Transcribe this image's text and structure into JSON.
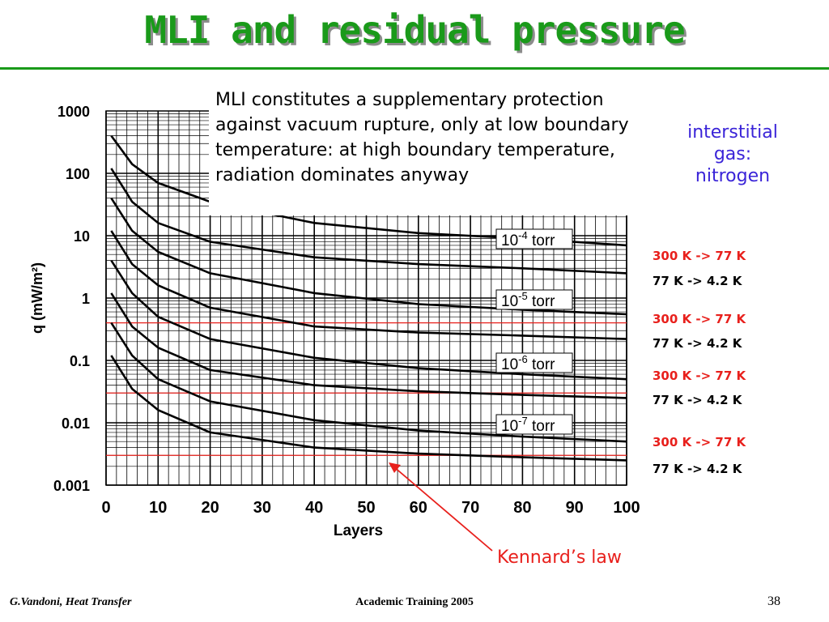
{
  "slide": {
    "title": "MLI and residual pressure",
    "note": "MLI constitutes a supplementary protection against vacuum rupture, only at low boundary temperature: at high boundary temperature, radiation dominates anyway",
    "gas_label_lines": [
      "interstitial",
      "gas:",
      "nitrogen"
    ],
    "conditions": [
      {
        "text": "300 K -> 77 K",
        "color": "#e8201c"
      },
      {
        "text": "77 K -> 4.2 K",
        "color": "#000000"
      },
      {
        "text": "300 K -> 77 K",
        "color": "#e8201c"
      },
      {
        "text": "77 K -> 4.2 K",
        "color": "#000000"
      },
      {
        "text": "300 K -> 77 K",
        "color": "#e8201c"
      },
      {
        "text": "77 K -> 4.2 K",
        "color": "#000000"
      },
      {
        "text": "300 K -> 77 K",
        "color": "#e8201c"
      },
      {
        "text": "77 K -> 4.2 K",
        "color": "#000000"
      }
    ],
    "kennard_label": "Kennard’s law",
    "footer_left": "G.Vandoni, Heat Transfer",
    "footer_center": "Academic Training 2005",
    "page_number": "38",
    "colors": {
      "title": "#1a9a1a",
      "accent_red": "#e8201c",
      "gas_label": "#3a24d8"
    }
  },
  "chart_data": {
    "type": "line",
    "xlabel": "Layers",
    "ylabel": "q (mW/m²)",
    "xlim": [
      0,
      100
    ],
    "ylim": [
      0.001,
      1000
    ],
    "yscale": "log",
    "grid": true,
    "x_ticks": [
      0,
      10,
      20,
      30,
      40,
      50,
      60,
      70,
      80,
      90,
      100
    ],
    "y_tick_labels": [
      "1000",
      "100",
      "10",
      "1",
      "0.1",
      "0.01",
      "0.001"
    ],
    "y_tick_values": [
      1000,
      100,
      10,
      1,
      0.1,
      0.01,
      0.001
    ],
    "pressure_labels": [
      {
        "base": "10",
        "exp": "-4",
        "unit": "torr"
      },
      {
        "base": "10",
        "exp": "-5",
        "unit": "torr"
      },
      {
        "base": "10",
        "exp": "-6",
        "unit": "torr"
      },
      {
        "base": "10",
        "exp": "-7",
        "unit": "torr"
      }
    ],
    "series": [
      {
        "x": [
          1,
          5,
          10,
          20,
          40,
          60,
          80,
          100
        ],
        "y": [
          400,
          140,
          70,
          35,
          16,
          11,
          9,
          7
        ]
      },
      {
        "x": [
          1,
          5,
          10,
          20,
          40,
          60,
          80,
          100
        ],
        "y": [
          120,
          35,
          16,
          8,
          4.5,
          3.5,
          3,
          2.5
        ]
      },
      {
        "x": [
          1,
          5,
          10,
          20,
          40,
          60,
          80,
          100
        ],
        "y": [
          40,
          12,
          5.5,
          2.5,
          1.2,
          0.8,
          0.65,
          0.55
        ]
      },
      {
        "x": [
          1,
          5,
          10,
          20,
          40,
          60,
          80,
          100
        ],
        "y": [
          12,
          3.5,
          1.6,
          0.7,
          0.35,
          0.28,
          0.25,
          0.22
        ]
      },
      {
        "x": [
          1,
          5,
          10,
          20,
          40,
          60,
          80,
          100
        ],
        "y": [
          4,
          1.2,
          0.5,
          0.22,
          0.11,
          0.075,
          0.06,
          0.05
        ]
      },
      {
        "x": [
          1,
          5,
          10,
          20,
          40,
          60,
          80,
          100
        ],
        "y": [
          1.2,
          0.35,
          0.16,
          0.07,
          0.04,
          0.032,
          0.028,
          0.025
        ]
      },
      {
        "x": [
          1,
          5,
          10,
          20,
          40,
          60,
          80,
          100
        ],
        "y": [
          0.4,
          0.12,
          0.05,
          0.022,
          0.011,
          0.0075,
          0.006,
          0.005
        ]
      },
      {
        "x": [
          1,
          5,
          10,
          20,
          40,
          60,
          80,
          100
        ],
        "y": [
          0.12,
          0.035,
          0.016,
          0.007,
          0.004,
          0.0032,
          0.0028,
          0.0025
        ]
      }
    ],
    "reference_lines_y": [
      0.4,
      0.03,
      0.003
    ]
  }
}
